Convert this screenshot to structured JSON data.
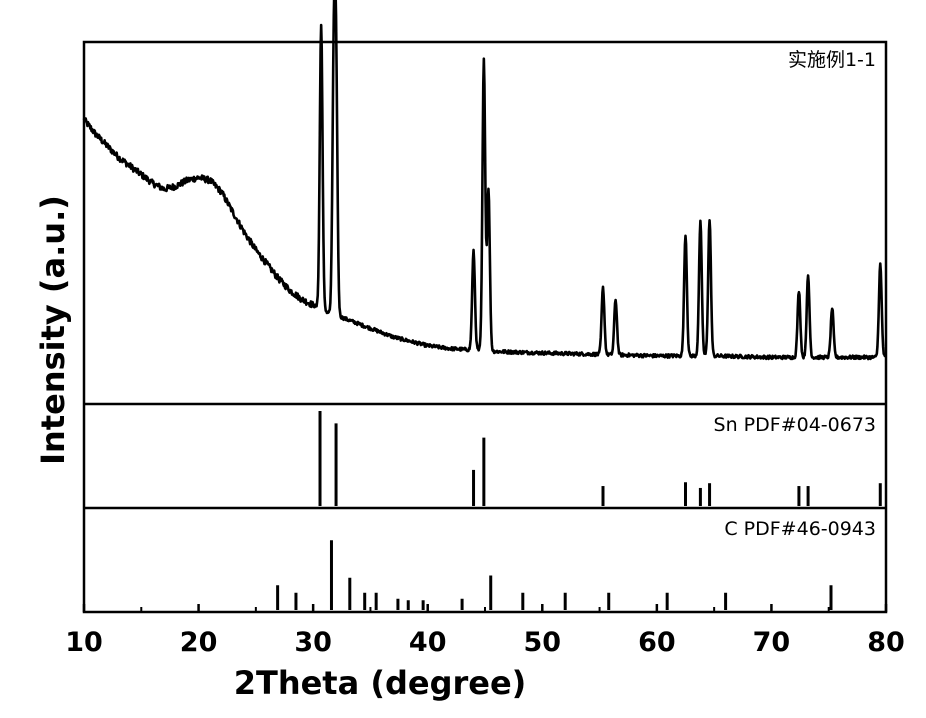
{
  "chart_data": {
    "type": "line",
    "xlabel": "2Theta (degree)",
    "ylabel": "Intensity (a.u.)",
    "xlim": [
      10,
      80
    ],
    "x_ticks": [
      "10",
      "20",
      "30",
      "40",
      "50",
      "60",
      "70",
      "80"
    ],
    "panels": [
      {
        "label": "实施例1-1",
        "kind": "pattern",
        "background": [
          [
            10,
            0.85
          ],
          [
            11,
            0.8
          ],
          [
            12,
            0.76
          ],
          [
            13,
            0.72
          ],
          [
            14,
            0.69
          ],
          [
            15,
            0.66
          ],
          [
            16,
            0.63
          ],
          [
            17,
            0.61
          ],
          [
            18,
            0.62
          ],
          [
            19,
            0.64
          ],
          [
            20,
            0.65
          ],
          [
            21,
            0.64
          ],
          [
            22,
            0.6
          ],
          [
            23,
            0.53
          ],
          [
            24,
            0.46
          ],
          [
            25,
            0.4
          ],
          [
            26,
            0.35
          ],
          [
            27,
            0.3
          ],
          [
            28,
            0.26
          ],
          [
            29,
            0.23
          ],
          [
            30,
            0.21
          ],
          [
            31,
            0.19
          ],
          [
            32,
            0.175
          ],
          [
            33,
            0.16
          ],
          [
            34,
            0.145
          ],
          [
            35,
            0.13
          ],
          [
            36,
            0.115
          ],
          [
            37,
            0.1
          ],
          [
            38,
            0.09
          ],
          [
            39,
            0.08
          ],
          [
            40,
            0.07
          ],
          [
            42,
            0.06
          ],
          [
            44,
            0.055
          ],
          [
            46,
            0.05
          ],
          [
            50,
            0.045
          ],
          [
            55,
            0.04
          ],
          [
            60,
            0.035
          ],
          [
            65,
            0.035
          ],
          [
            70,
            0.03
          ],
          [
            75,
            0.03
          ],
          [
            80,
            0.03
          ]
        ],
        "peaks": [
          [
            30.7,
            0.98
          ],
          [
            31.8,
            0.82
          ],
          [
            32.0,
            0.82
          ],
          [
            44.0,
            0.34
          ],
          [
            44.9,
            1.0
          ],
          [
            45.3,
            0.56
          ],
          [
            55.3,
            0.23
          ],
          [
            56.4,
            0.19
          ],
          [
            62.5,
            0.42
          ],
          [
            63.8,
            0.46
          ],
          [
            64.6,
            0.47
          ],
          [
            72.4,
            0.23
          ],
          [
            73.2,
            0.28
          ],
          [
            75.3,
            0.17
          ],
          [
            79.5,
            0.32
          ]
        ]
      },
      {
        "label": "Sn PDF#04-0673",
        "kind": "reference",
        "sticks": [
          [
            30.6,
            1.0
          ],
          [
            32.0,
            0.87
          ],
          [
            44.0,
            0.38
          ],
          [
            44.9,
            0.72
          ],
          [
            55.3,
            0.21
          ],
          [
            62.5,
            0.25
          ],
          [
            63.8,
            0.19
          ],
          [
            64.6,
            0.24
          ],
          [
            72.4,
            0.21
          ],
          [
            73.2,
            0.21
          ],
          [
            79.5,
            0.24
          ]
        ]
      },
      {
        "label": "C PDF#46-0943",
        "kind": "reference",
        "sticks": [
          [
            26.9,
            0.33
          ],
          [
            28.5,
            0.23
          ],
          [
            31.6,
            0.93
          ],
          [
            33.2,
            0.43
          ],
          [
            34.5,
            0.23
          ],
          [
            35.5,
            0.23
          ],
          [
            37.4,
            0.15
          ],
          [
            38.3,
            0.13
          ],
          [
            39.6,
            0.13
          ],
          [
            43.0,
            0.15
          ],
          [
            45.5,
            0.46
          ],
          [
            48.3,
            0.23
          ],
          [
            52.0,
            0.23
          ],
          [
            55.8,
            0.23
          ],
          [
            60.9,
            0.23
          ],
          [
            66.0,
            0.23
          ],
          [
            75.2,
            0.33
          ]
        ]
      }
    ]
  }
}
